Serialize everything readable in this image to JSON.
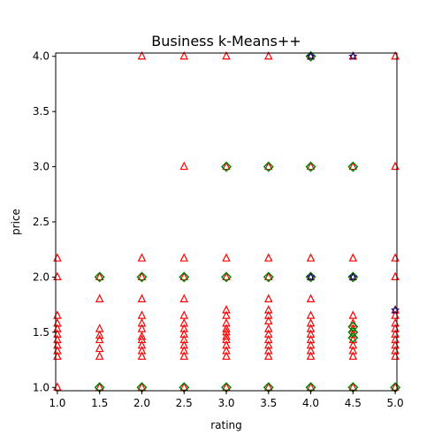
{
  "chart_data": {
    "type": "scatter",
    "title": "Business k-Means++",
    "xlabel": "rating",
    "ylabel": "price",
    "xlim": [
      0.98,
      5.02
    ],
    "ylim": [
      0.97,
      4.03
    ],
    "xticks": [
      "1.0",
      "1.5",
      "2.0",
      "2.5",
      "3.0",
      "3.5",
      "4.0",
      "4.5",
      "5.0"
    ],
    "yticks": [
      "1.0",
      "1.5",
      "2.0",
      "2.5",
      "3.0",
      "3.5",
      "4.0"
    ],
    "grid": false,
    "series": [
      {
        "marker": "triangle",
        "color": "#ff0000",
        "points": [
          [
            1.0,
            1.0
          ],
          [
            1.0,
            1.28
          ],
          [
            1.0,
            1.33
          ],
          [
            1.0,
            1.38
          ],
          [
            1.0,
            1.43
          ],
          [
            1.0,
            1.48
          ],
          [
            1.0,
            1.53
          ],
          [
            1.0,
            1.58
          ],
          [
            1.0,
            1.65
          ],
          [
            1.0,
            2.0
          ],
          [
            1.0,
            2.17
          ],
          [
            1.5,
            1.0
          ],
          [
            1.5,
            1.28
          ],
          [
            1.5,
            1.35
          ],
          [
            1.5,
            1.43
          ],
          [
            1.5,
            1.47
          ],
          [
            1.5,
            1.53
          ],
          [
            1.5,
            1.8
          ],
          [
            1.5,
            2.0
          ],
          [
            2.0,
            1.0
          ],
          [
            2.0,
            1.28
          ],
          [
            2.0,
            1.33
          ],
          [
            2.0,
            1.38
          ],
          [
            2.0,
            1.43
          ],
          [
            2.0,
            1.46
          ],
          [
            2.0,
            1.53
          ],
          [
            2.0,
            1.58
          ],
          [
            2.0,
            1.65
          ],
          [
            2.0,
            1.8
          ],
          [
            2.0,
            2.0
          ],
          [
            2.0,
            2.17
          ],
          [
            2.0,
            4.0
          ],
          [
            2.5,
            1.0
          ],
          [
            2.5,
            1.28
          ],
          [
            2.5,
            1.33
          ],
          [
            2.5,
            1.38
          ],
          [
            2.5,
            1.43
          ],
          [
            2.5,
            1.48
          ],
          [
            2.5,
            1.53
          ],
          [
            2.5,
            1.58
          ],
          [
            2.5,
            1.65
          ],
          [
            2.5,
            1.8
          ],
          [
            2.5,
            2.0
          ],
          [
            2.5,
            2.17
          ],
          [
            2.5,
            3.0
          ],
          [
            2.5,
            4.0
          ],
          [
            3.0,
            1.0
          ],
          [
            3.0,
            1.28
          ],
          [
            3.0,
            1.33
          ],
          [
            3.0,
            1.38
          ],
          [
            3.0,
            1.43
          ],
          [
            3.0,
            1.46
          ],
          [
            3.0,
            1.5
          ],
          [
            3.0,
            1.53
          ],
          [
            3.0,
            1.58
          ],
          [
            3.0,
            1.65
          ],
          [
            3.0,
            1.7
          ],
          [
            3.0,
            2.0
          ],
          [
            3.0,
            2.17
          ],
          [
            3.0,
            3.0
          ],
          [
            3.0,
            4.0
          ],
          [
            3.5,
            1.0
          ],
          [
            3.5,
            1.28
          ],
          [
            3.5,
            1.33
          ],
          [
            3.5,
            1.38
          ],
          [
            3.5,
            1.43
          ],
          [
            3.5,
            1.48
          ],
          [
            3.5,
            1.53
          ],
          [
            3.5,
            1.6
          ],
          [
            3.5,
            1.65
          ],
          [
            3.5,
            1.7
          ],
          [
            3.5,
            1.8
          ],
          [
            3.5,
            2.0
          ],
          [
            3.5,
            2.17
          ],
          [
            3.5,
            3.0
          ],
          [
            3.5,
            4.0
          ],
          [
            4.0,
            1.0
          ],
          [
            4.0,
            1.28
          ],
          [
            4.0,
            1.33
          ],
          [
            4.0,
            1.38
          ],
          [
            4.0,
            1.43
          ],
          [
            4.0,
            1.48
          ],
          [
            4.0,
            1.53
          ],
          [
            4.0,
            1.58
          ],
          [
            4.0,
            1.65
          ],
          [
            4.0,
            1.8
          ],
          [
            4.0,
            2.0
          ],
          [
            4.0,
            2.17
          ],
          [
            4.0,
            3.0
          ],
          [
            4.0,
            4.0
          ],
          [
            4.5,
            1.0
          ],
          [
            4.5,
            1.28
          ],
          [
            4.5,
            1.33
          ],
          [
            4.5,
            1.38
          ],
          [
            4.5,
            1.43
          ],
          [
            4.5,
            1.48
          ],
          [
            4.5,
            1.53
          ],
          [
            4.5,
            1.58
          ],
          [
            4.5,
            1.65
          ],
          [
            4.5,
            2.0
          ],
          [
            4.5,
            2.17
          ],
          [
            4.5,
            3.0
          ],
          [
            4.5,
            4.0
          ],
          [
            5.0,
            1.0
          ],
          [
            5.0,
            1.28
          ],
          [
            5.0,
            1.33
          ],
          [
            5.0,
            1.38
          ],
          [
            5.0,
            1.43
          ],
          [
            5.0,
            1.48
          ],
          [
            5.0,
            1.53
          ],
          [
            5.0,
            1.58
          ],
          [
            5.0,
            1.65
          ],
          [
            5.0,
            1.7
          ],
          [
            5.0,
            2.0
          ],
          [
            5.0,
            2.17
          ],
          [
            5.0,
            3.0
          ],
          [
            5.0,
            4.0
          ]
        ]
      },
      {
        "marker": "diamond",
        "color": "#008000",
        "points": [
          [
            1.5,
            1.0
          ],
          [
            1.5,
            2.0
          ],
          [
            2.0,
            1.0
          ],
          [
            2.0,
            2.0
          ],
          [
            2.5,
            1.0
          ],
          [
            2.5,
            2.0
          ],
          [
            3.0,
            1.0
          ],
          [
            3.0,
            2.0
          ],
          [
            3.0,
            3.0
          ],
          [
            3.5,
            1.0
          ],
          [
            3.5,
            2.0
          ],
          [
            3.5,
            3.0
          ],
          [
            4.0,
            1.0
          ],
          [
            4.0,
            2.0
          ],
          [
            4.0,
            3.0
          ],
          [
            4.0,
            4.0
          ],
          [
            4.5,
            1.0
          ],
          [
            4.5,
            1.45
          ],
          [
            4.5,
            1.5
          ],
          [
            4.5,
            1.55
          ],
          [
            4.5,
            2.0
          ],
          [
            4.5,
            3.0
          ],
          [
            5.0,
            1.0
          ]
        ]
      },
      {
        "marker": "star",
        "color": "#00008b",
        "points": [
          [
            4.0,
            2.0
          ],
          [
            4.0,
            4.0
          ],
          [
            4.5,
            2.0
          ],
          [
            4.5,
            4.0
          ],
          [
            5.0,
            1.7
          ]
        ]
      }
    ]
  }
}
